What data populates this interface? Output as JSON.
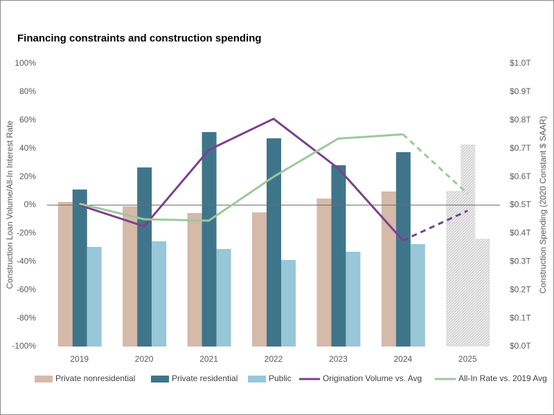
{
  "chart_data": {
    "type": "bar_line",
    "title": "Financing constraints and construction spending",
    "y_label": "Construction Loan Volume/All-In Interest Rate",
    "y2_label": "Construction Spending (2020 Constant $ SAAR)",
    "categories": [
      "2019",
      "2020",
      "2021",
      "2022",
      "2023",
      "2024",
      "2025"
    ],
    "forecast_start": 5,
    "forecast_color": "#c8c8c8",
    "ylim": [
      -100,
      100
    ],
    "yticks": [
      {
        "value": -100,
        "label": "-100%"
      },
      {
        "value": -80,
        "label": "-80%"
      },
      {
        "value": -60,
        "label": "-60%"
      },
      {
        "value": -40,
        "label": "-40%"
      },
      {
        "value": -20,
        "label": "-20%"
      },
      {
        "value": 0,
        "label": "0%"
      },
      {
        "value": 20,
        "label": "20%"
      },
      {
        "value": 40,
        "label": "40%"
      },
      {
        "value": 60,
        "label": "60%"
      },
      {
        "value": 80,
        "label": "80%"
      },
      {
        "value": 100,
        "label": "100%"
      }
    ],
    "y2lim": [
      0,
      1.0
    ],
    "y2ticks": [
      {
        "value": 0,
        "label": "$0.0T"
      },
      {
        "value": 0.1,
        "label": "$0.1T"
      },
      {
        "value": 0.2,
        "label": "$0.2T"
      },
      {
        "value": 0.3,
        "label": "$0.3T"
      },
      {
        "value": 0.4,
        "label": "$0.4T"
      },
      {
        "value": 0.5,
        "label": "$0.5T"
      },
      {
        "value": 0.6,
        "label": "$0.6T"
      },
      {
        "value": 0.7,
        "label": "$0.7T"
      },
      {
        "value": 0.8,
        "label": "$0.8T"
      },
      {
        "value": 0.9,
        "label": "$0.9T"
      },
      {
        "value": 1.0,
        "label": "$1.0T"
      }
    ],
    "series": [
      {
        "name": "Private nonresidential",
        "type": "bar",
        "axis": "y2",
        "color": "#d5b9a9",
        "values": [
          0.511,
          0.496,
          0.472,
          0.474,
          0.523,
          0.548,
          0.55
        ]
      },
      {
        "name": "Private residential",
        "type": "bar",
        "axis": "y2",
        "color": "#3f758a",
        "values": [
          0.555,
          0.633,
          0.758,
          0.736,
          0.641,
          0.687,
          0.714
        ]
      },
      {
        "name": "Public",
        "type": "bar",
        "axis": "y2",
        "color": "#97c7d8",
        "values": [
          0.352,
          0.372,
          0.345,
          0.306,
          0.335,
          0.362,
          0.381
        ]
      },
      {
        "name": "Origination Volume vs. Avg",
        "type": "line",
        "color": "#7d3f8e",
        "values": [
          0,
          -15,
          39,
          61,
          26,
          -25,
          -4
        ]
      },
      {
        "name": "All-In Rate vs. 2019 Avg",
        "type": "line",
        "color": "#9cc89c",
        "values": [
          1,
          -10,
          -11,
          20,
          47,
          50,
          8
        ]
      }
    ]
  }
}
